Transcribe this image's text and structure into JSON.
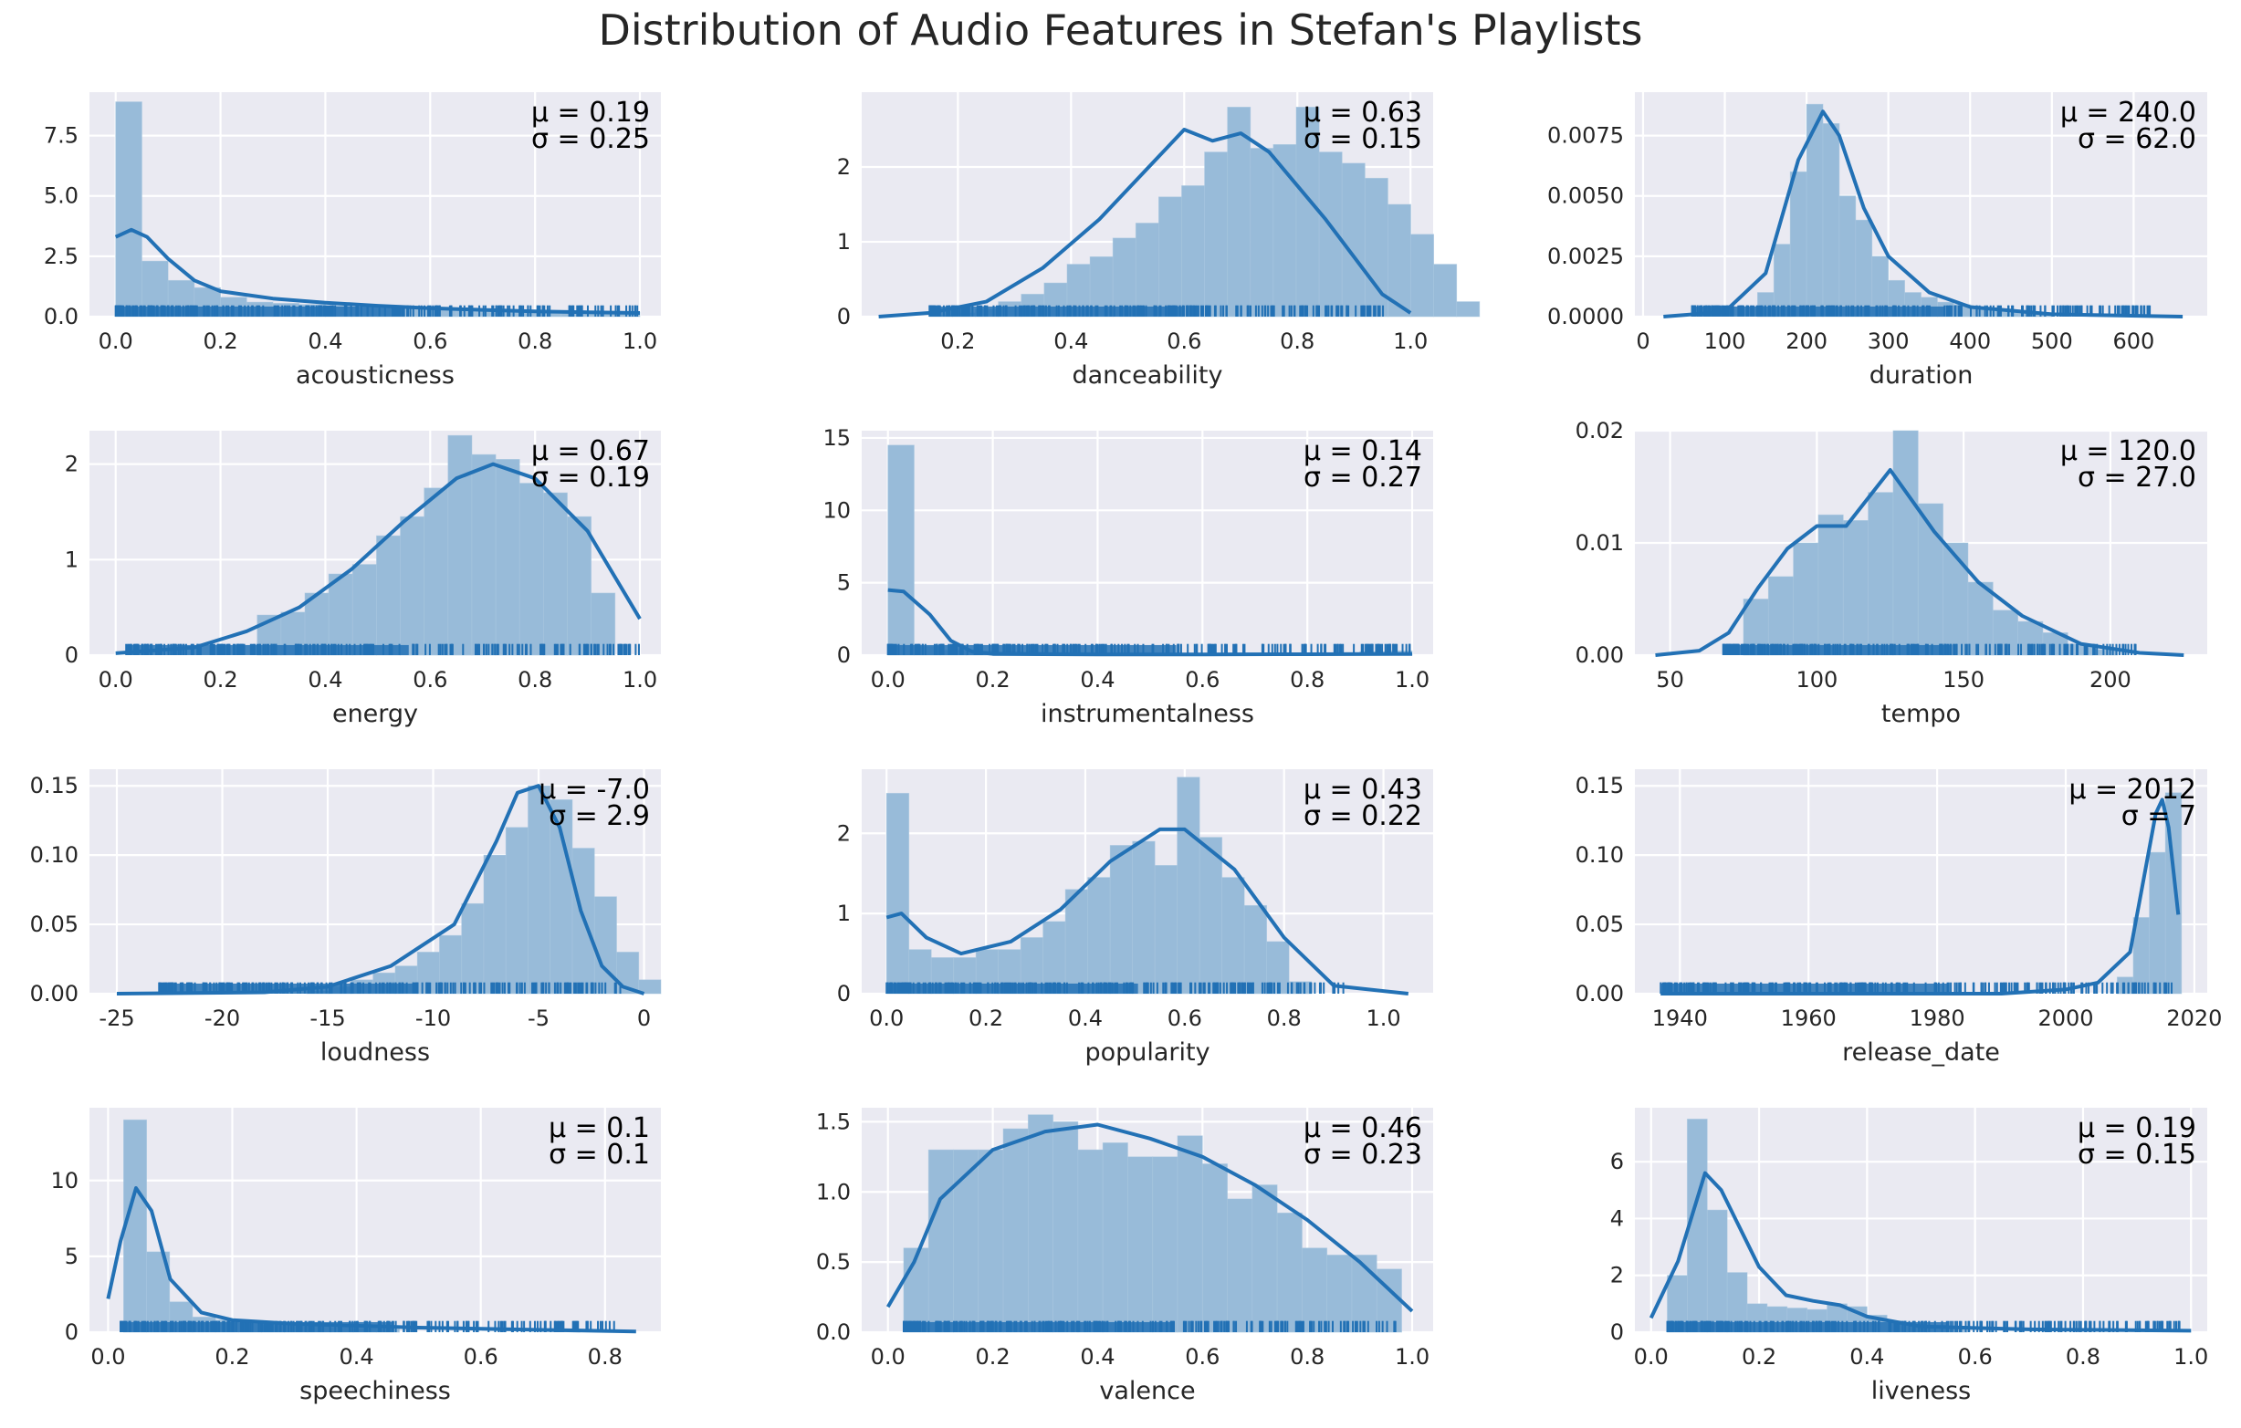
{
  "figure": {
    "title": "Distribution of Audio Features in Stefan's Playlists"
  },
  "colors": {
    "panel_bg": "#eaeaf2",
    "grid": "#ffffff",
    "hist_fill": "#98bbd9",
    "line": "#2271b5",
    "text": "#262626"
  },
  "chart_data": [
    {
      "type": "histogram+kde",
      "xlabel": "acousticness",
      "mu": "μ = 0.19",
      "sigma": "σ = 0.25",
      "xlim": [
        -0.05,
        1.04
      ],
      "ylim": [
        0,
        9.3
      ],
      "xticks": [
        "0.0",
        "0.2",
        "0.4",
        "0.6",
        "0.8",
        "1.0"
      ],
      "xtick_values": [
        0,
        0.2,
        0.4,
        0.6,
        0.8,
        1.0
      ],
      "yticks": [
        "0.0",
        "2.5",
        "5.0",
        "7.5"
      ],
      "ytick_values": [
        0,
        2.5,
        5,
        7.5
      ],
      "bins": {
        "start": 0,
        "width": 0.05,
        "values": [
          8.9,
          2.3,
          1.5,
          1.2,
          0.8,
          0.6,
          0.55,
          0.5,
          0.45,
          0.4,
          0.35,
          0.32,
          0.3,
          0.28,
          0.25,
          0.22,
          0.2,
          0.2,
          0.18,
          0.18
        ]
      },
      "kde": [
        [
          0,
          3.3
        ],
        [
          0.03,
          3.6
        ],
        [
          0.06,
          3.3
        ],
        [
          0.1,
          2.4
        ],
        [
          0.15,
          1.5
        ],
        [
          0.2,
          1.05
        ],
        [
          0.3,
          0.75
        ],
        [
          0.4,
          0.58
        ],
        [
          0.5,
          0.45
        ],
        [
          0.6,
          0.35
        ],
        [
          0.7,
          0.28
        ],
        [
          0.8,
          0.22
        ],
        [
          0.9,
          0.18
        ],
        [
          1.0,
          0.15
        ]
      ],
      "rug": [
        0,
        1
      ]
    },
    {
      "type": "histogram+kde",
      "xlabel": "danceability",
      "mu": "μ = 0.63",
      "sigma": "σ = 0.15",
      "xlim": [
        0.03,
        1.04
      ],
      "ylim": [
        0,
        3.0
      ],
      "xticks": [
        "0.2",
        "0.4",
        "0.6",
        "0.8",
        "1.0"
      ],
      "xtick_values": [
        0.2,
        0.4,
        0.6,
        0.8,
        1.0
      ],
      "yticks": [
        "0",
        "1",
        "2"
      ],
      "ytick_values": [
        0,
        1,
        2
      ],
      "bins": {
        "start": 0.15,
        "width": 0.0405,
        "values": [
          0.02,
          0.05,
          0.1,
          0.2,
          0.3,
          0.45,
          0.7,
          0.8,
          1.05,
          1.25,
          1.6,
          1.75,
          2.2,
          2.8,
          2.25,
          2.3,
          2.8,
          2.2,
          2.05,
          1.85,
          1.5,
          1.1,
          0.7,
          0.2
        ]
      },
      "kde": [
        [
          0.06,
          0.0
        ],
        [
          0.15,
          0.05
        ],
        [
          0.25,
          0.2
        ],
        [
          0.35,
          0.65
        ],
        [
          0.45,
          1.3
        ],
        [
          0.55,
          2.1
        ],
        [
          0.6,
          2.5
        ],
        [
          0.65,
          2.35
        ],
        [
          0.7,
          2.45
        ],
        [
          0.75,
          2.2
        ],
        [
          0.85,
          1.3
        ],
        [
          0.95,
          0.3
        ],
        [
          1.0,
          0.05
        ]
      ],
      "rug": [
        0.15,
        0.97
      ]
    },
    {
      "type": "histogram+kde",
      "xlabel": "duration",
      "mu": "μ = 240.0",
      "sigma": "σ = 62.0",
      "xlim": [
        -10,
        690
      ],
      "ylim": [
        0,
        0.0093
      ],
      "xticks": [
        "0",
        "100",
        "200",
        "300",
        "400",
        "500",
        "600"
      ],
      "xtick_values": [
        0,
        100,
        200,
        300,
        400,
        500,
        600
      ],
      "yticks": [
        "0.0000",
        "0.0025",
        "0.0050",
        "0.0075"
      ],
      "ytick_values": [
        0,
        0.0025,
        0.005,
        0.0075
      ],
      "bins": {
        "start": 140,
        "width": 20,
        "values": [
          0.001,
          0.003,
          0.006,
          0.0088,
          0.008,
          0.005,
          0.004,
          0.0025,
          0.0015,
          0.001,
          0.0008,
          0.0006,
          0.0005,
          0.0004,
          0.0003,
          0.0002,
          0.0002,
          0.0001
        ]
      },
      "kde": [
        [
          25,
          0
        ],
        [
          100,
          0.0002
        ],
        [
          150,
          0.0018
        ],
        [
          190,
          0.0065
        ],
        [
          220,
          0.0085
        ],
        [
          240,
          0.0075
        ],
        [
          270,
          0.0045
        ],
        [
          300,
          0.0025
        ],
        [
          350,
          0.001
        ],
        [
          400,
          0.0004
        ],
        [
          500,
          0.0001
        ],
        [
          660,
          0
        ]
      ],
      "rug": [
        60,
        620
      ]
    },
    {
      "type": "histogram+kde",
      "xlabel": "energy",
      "mu": "μ = 0.67",
      "sigma": "σ = 0.19",
      "xlim": [
        -0.05,
        1.04
      ],
      "ylim": [
        0,
        2.35
      ],
      "xticks": [
        "0.0",
        "0.2",
        "0.4",
        "0.6",
        "0.8",
        "1.0"
      ],
      "xtick_values": [
        0,
        0.2,
        0.4,
        0.6,
        0.8,
        1.0
      ],
      "yticks": [
        "0",
        "1",
        "2"
      ],
      "ytick_values": [
        0,
        1,
        2
      ],
      "bins": {
        "start": 0.27,
        "width": 0.0455,
        "values": [
          0.42,
          0.45,
          0.65,
          0.85,
          0.95,
          1.25,
          1.45,
          1.75,
          2.3,
          2.1,
          2.05,
          1.8,
          1.7,
          1.45,
          0.65
        ]
      },
      "kde": [
        [
          0,
          0.02
        ],
        [
          0.15,
          0.08
        ],
        [
          0.25,
          0.25
        ],
        [
          0.35,
          0.5
        ],
        [
          0.45,
          0.9
        ],
        [
          0.55,
          1.4
        ],
        [
          0.65,
          1.85
        ],
        [
          0.72,
          2.0
        ],
        [
          0.8,
          1.85
        ],
        [
          0.9,
          1.3
        ],
        [
          1.0,
          0.38
        ]
      ],
      "rug": [
        0.02,
        1
      ]
    },
    {
      "type": "histogram+kde",
      "xlabel": "instrumentalness",
      "mu": "μ = 0.14",
      "sigma": "σ = 0.27",
      "xlim": [
        -0.05,
        1.04
      ],
      "ylim": [
        0,
        15.5
      ],
      "xticks": [
        "0.0",
        "0.2",
        "0.4",
        "0.6",
        "0.8",
        "1.0"
      ],
      "xtick_values": [
        0,
        0.2,
        0.4,
        0.6,
        0.8,
        1.0
      ],
      "yticks": [
        "0",
        "5",
        "10",
        "15"
      ],
      "ytick_values": [
        0,
        5,
        10,
        15
      ],
      "bins": {
        "start": 0,
        "width": 0.05,
        "values": [
          14.5,
          0.6,
          0.35,
          0.3,
          0.25,
          0.22,
          0.2,
          0.2,
          0.18,
          0.18,
          0.16,
          0.16,
          0.15,
          0.15,
          0.14,
          0.14,
          0.15,
          0.18,
          0.25,
          0.3
        ]
      },
      "kde": [
        [
          0,
          4.5
        ],
        [
          0.03,
          4.4
        ],
        [
          0.08,
          2.8
        ],
        [
          0.12,
          1.0
        ],
        [
          0.16,
          0.25
        ],
        [
          0.2,
          0.08
        ],
        [
          0.4,
          0.05
        ],
        [
          0.6,
          0.05
        ],
        [
          0.8,
          0.06
        ],
        [
          1.0,
          0.08
        ]
      ],
      "rug": [
        0,
        1
      ]
    },
    {
      "type": "histogram+kde",
      "xlabel": "tempo",
      "mu": "μ = 120.0",
      "sigma": "σ = 27.0",
      "xlim": [
        38,
        233
      ],
      "ylim": [
        0,
        0.02
      ],
      "xticks": [
        "50",
        "100",
        "150",
        "200"
      ],
      "xtick_values": [
        50,
        100,
        150,
        200
      ],
      "yticks": [
        "0.00",
        "0.01",
        "0.02"
      ],
      "ytick_values": [
        0,
        0.01,
        0.02
      ],
      "bins": {
        "start": 75,
        "width": 8.5,
        "values": [
          0.005,
          0.007,
          0.01,
          0.0125,
          0.012,
          0.0145,
          0.02,
          0.0135,
          0.01,
          0.0065,
          0.004,
          0.003,
          0.002,
          0.001,
          0.0005
        ]
      },
      "kde": [
        [
          45,
          0
        ],
        [
          60,
          0.0004
        ],
        [
          70,
          0.002
        ],
        [
          80,
          0.006
        ],
        [
          90,
          0.0095
        ],
        [
          100,
          0.0115
        ],
        [
          110,
          0.0115
        ],
        [
          125,
          0.0165
        ],
        [
          140,
          0.011
        ],
        [
          155,
          0.0065
        ],
        [
          170,
          0.0035
        ],
        [
          190,
          0.001
        ],
        [
          210,
          0.0002
        ],
        [
          225,
          0
        ]
      ],
      "rug": [
        68,
        210
      ]
    },
    {
      "type": "histogram+kde",
      "xlabel": "loudness",
      "mu": "μ = -7.0",
      "sigma": "σ = 2.9",
      "xlim": [
        -26.3,
        0.8
      ],
      "ylim": [
        0,
        0.162
      ],
      "xticks": [
        "-25",
        "-20",
        "-15",
        "-10",
        "-5",
        "0"
      ],
      "xtick_values": [
        -25,
        -20,
        -15,
        -10,
        -5,
        0
      ],
      "yticks": [
        "0.00",
        "0.05",
        "0.10",
        "0.15"
      ],
      "ytick_values": [
        0,
        0.05,
        0.1,
        0.15
      ],
      "bins": {
        "start": -16,
        "width": 1.05,
        "values": [
          0.002,
          0.005,
          0.01,
          0.015,
          0.02,
          0.03,
          0.042,
          0.065,
          0.1,
          0.12,
          0.15,
          0.14,
          0.105,
          0.07,
          0.03,
          0.01
        ]
      },
      "kde": [
        [
          -25,
          0
        ],
        [
          -18,
          0.001
        ],
        [
          -15,
          0.005
        ],
        [
          -12,
          0.02
        ],
        [
          -9,
          0.05
        ],
        [
          -7,
          0.11
        ],
        [
          -6,
          0.145
        ],
        [
          -5,
          0.15
        ],
        [
          -4,
          0.12
        ],
        [
          -3,
          0.06
        ],
        [
          -2,
          0.02
        ],
        [
          -1,
          0.005
        ],
        [
          0,
          0
        ]
      ],
      "rug": [
        -23,
        -1
      ]
    },
    {
      "type": "histogram+kde",
      "xlabel": "popularity",
      "mu": "μ = 0.43",
      "sigma": "σ = 0.22",
      "xlim": [
        -0.05,
        1.1
      ],
      "ylim": [
        0,
        2.8
      ],
      "xticks": [
        "0.0",
        "0.2",
        "0.4",
        "0.6",
        "0.8",
        "1.0"
      ],
      "xtick_values": [
        0,
        0.2,
        0.4,
        0.6,
        0.8,
        1.0
      ],
      "yticks": [
        "0",
        "1",
        "2"
      ],
      "ytick_values": [
        0,
        1,
        2
      ],
      "bins": {
        "start": 0,
        "width": 0.045,
        "values": [
          2.5,
          0.55,
          0.45,
          0.45,
          0.55,
          0.55,
          0.7,
          0.9,
          1.3,
          1.45,
          1.85,
          1.9,
          1.6,
          2.7,
          1.95,
          1.45,
          1.1,
          0.65,
          0.15
        ]
      },
      "kde": [
        [
          0,
          0.95
        ],
        [
          0.03,
          1.0
        ],
        [
          0.08,
          0.7
        ],
        [
          0.15,
          0.5
        ],
        [
          0.25,
          0.65
        ],
        [
          0.35,
          1.05
        ],
        [
          0.45,
          1.65
        ],
        [
          0.55,
          2.05
        ],
        [
          0.6,
          2.05
        ],
        [
          0.7,
          1.55
        ],
        [
          0.8,
          0.7
        ],
        [
          0.9,
          0.1
        ],
        [
          1.05,
          0.0
        ]
      ],
      "rug": [
        0,
        0.92
      ]
    },
    {
      "type": "histogram+kde",
      "xlabel": "release_date",
      "mu": "μ = 2012",
      "sigma": "σ = 7",
      "xlim": [
        1933,
        2022
      ],
      "ylim": [
        0,
        0.162
      ],
      "xticks": [
        "1940",
        "1960",
        "1980",
        "2000",
        "2020"
      ],
      "xtick_values": [
        1940,
        1960,
        1980,
        2000,
        2020
      ],
      "yticks": [
        "0.00",
        "0.05",
        "0.10",
        "0.15"
      ],
      "ytick_values": [
        0,
        0.05,
        0.1,
        0.15
      ],
      "bins": {
        "start": 2008,
        "width": 2.5,
        "values": [
          0.012,
          0.055,
          0.102,
          0.145
        ]
      },
      "kde": [
        [
          1937,
          0
        ],
        [
          1990,
          0
        ],
        [
          2000,
          0.003
        ],
        [
          2005,
          0.008
        ],
        [
          2010,
          0.03
        ],
        [
          2012,
          0.08
        ],
        [
          2014,
          0.13
        ],
        [
          2015,
          0.14
        ],
        [
          2016,
          0.12
        ],
        [
          2017.5,
          0.057
        ]
      ],
      "rug": [
        1937,
        2018
      ]
    },
    {
      "type": "histogram+kde",
      "xlabel": "speechiness",
      "mu": "μ = 0.1",
      "sigma": "σ = 0.1",
      "xlim": [
        -0.03,
        0.89
      ],
      "ylim": [
        0,
        14.8
      ],
      "xticks": [
        "0.0",
        "0.2",
        "0.4",
        "0.6",
        "0.8"
      ],
      "xtick_values": [
        0,
        0.2,
        0.4,
        0.6,
        0.8
      ],
      "yticks": [
        "0",
        "5",
        "10"
      ],
      "ytick_values": [
        0,
        5,
        10
      ],
      "bins": {
        "start": 0.025,
        "width": 0.037,
        "values": [
          14,
          5.3,
          2.0,
          1.0,
          0.8,
          0.6,
          0.5,
          0.45,
          0.4,
          0.3,
          0.25,
          0.2
        ]
      },
      "kde": [
        [
          0,
          2.2
        ],
        [
          0.02,
          6
        ],
        [
          0.045,
          9.5
        ],
        [
          0.07,
          8
        ],
        [
          0.1,
          3.5
        ],
        [
          0.15,
          1.3
        ],
        [
          0.2,
          0.8
        ],
        [
          0.3,
          0.55
        ],
        [
          0.5,
          0.3
        ],
        [
          0.7,
          0.15
        ],
        [
          0.85,
          0.05
        ]
      ],
      "rug": [
        0.02,
        0.82
      ]
    },
    {
      "type": "histogram+kde",
      "xlabel": "valence",
      "mu": "μ = 0.46",
      "sigma": "σ = 0.23",
      "xlim": [
        -0.05,
        1.04
      ],
      "ylim": [
        0,
        1.6
      ],
      "xticks": [
        "0.0",
        "0.2",
        "0.4",
        "0.6",
        "0.8",
        "1.0"
      ],
      "xtick_values": [
        0,
        0.2,
        0.4,
        0.6,
        0.8,
        1.0
      ],
      "yticks": [
        "0.0",
        "0.5",
        "1.0",
        "1.5"
      ],
      "ytick_values": [
        0,
        0.5,
        1.0,
        1.5
      ],
      "bins": {
        "start": 0.03,
        "width": 0.0475,
        "values": [
          0.6,
          1.3,
          1.3,
          1.3,
          1.45,
          1.55,
          1.5,
          1.3,
          1.35,
          1.25,
          1.25,
          1.4,
          1.2,
          0.95,
          1.05,
          0.85,
          0.6,
          0.55,
          0.55,
          0.45
        ]
      },
      "kde": [
        [
          0,
          0.18
        ],
        [
          0.05,
          0.5
        ],
        [
          0.1,
          0.95
        ],
        [
          0.2,
          1.3
        ],
        [
          0.3,
          1.43
        ],
        [
          0.4,
          1.48
        ],
        [
          0.5,
          1.38
        ],
        [
          0.6,
          1.25
        ],
        [
          0.7,
          1.05
        ],
        [
          0.8,
          0.8
        ],
        [
          0.9,
          0.5
        ],
        [
          1.0,
          0.15
        ]
      ],
      "rug": [
        0.03,
        0.97
      ]
    },
    {
      "type": "histogram+kde",
      "xlabel": "liveness",
      "mu": "μ = 0.19",
      "sigma": "σ = 0.15",
      "xlim": [
        -0.03,
        1.03
      ],
      "ylim": [
        0,
        7.9
      ],
      "xticks": [
        "0.0",
        "0.2",
        "0.4",
        "0.6",
        "0.8",
        "1.0"
      ],
      "xtick_values": [
        0,
        0.2,
        0.4,
        0.6,
        0.8,
        1.0
      ],
      "yticks": [
        "0",
        "2",
        "4",
        "6"
      ],
      "ytick_values": [
        0,
        2,
        4,
        6
      ],
      "bins": {
        "start": 0.03,
        "width": 0.037,
        "values": [
          2.0,
          7.5,
          4.3,
          2.1,
          1.0,
          0.9,
          0.85,
          0.8,
          1.0,
          0.9,
          0.6,
          0.4,
          0.3,
          0.25,
          0.2
        ]
      },
      "kde": [
        [
          0,
          0.5
        ],
        [
          0.05,
          2.5
        ],
        [
          0.1,
          5.6
        ],
        [
          0.13,
          5
        ],
        [
          0.2,
          2.3
        ],
        [
          0.25,
          1.3
        ],
        [
          0.3,
          1.1
        ],
        [
          0.35,
          0.95
        ],
        [
          0.4,
          0.55
        ],
        [
          0.5,
          0.2
        ],
        [
          0.7,
          0.1
        ],
        [
          1.0,
          0.05
        ]
      ],
      "rug": [
        0.03,
        0.98
      ]
    }
  ]
}
